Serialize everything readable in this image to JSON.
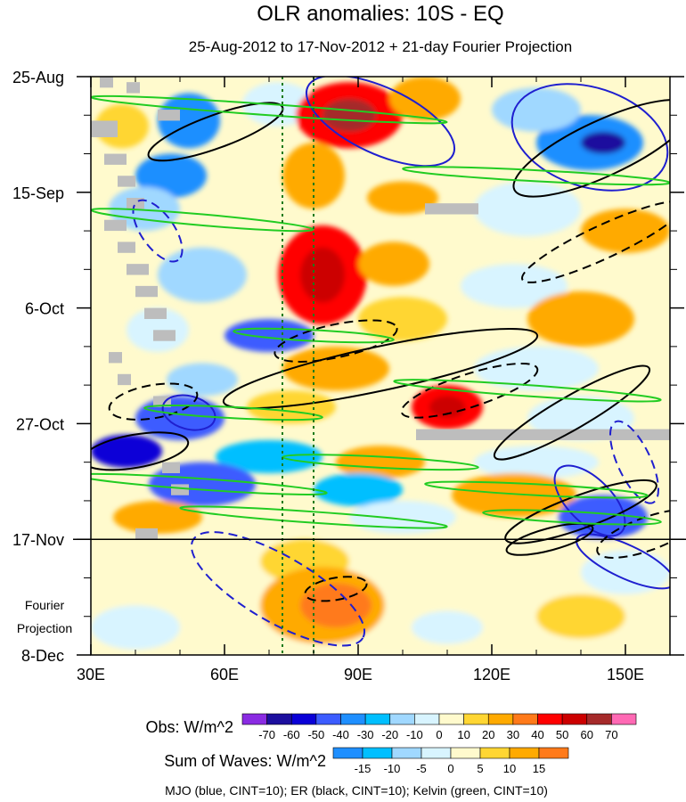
{
  "chart_data": {
    "type": "heatmap",
    "title": "OLR anomalies: 10S - EQ",
    "subtitle": "25-Aug-2012 to 17-Nov-2012 + 21-day Fourier Projection",
    "x_axis": {
      "range": [
        30,
        160
      ],
      "ticks": [
        {
          "value": 30,
          "label": "30E"
        },
        {
          "value": 60,
          "label": "60E"
        },
        {
          "value": 90,
          "label": "90E"
        },
        {
          "value": 120,
          "label": "120E"
        },
        {
          "value": 150,
          "label": "150E"
        }
      ]
    },
    "y_axis": {
      "range_days": [
        0,
        105
      ],
      "ticks": [
        {
          "day": 0,
          "label": "25-Aug"
        },
        {
          "day": 21,
          "label": "15-Sep"
        },
        {
          "day": 42,
          "label": "6-Oct"
        },
        {
          "day": 63,
          "label": "27-Oct"
        },
        {
          "day": 84,
          "label": "17-Nov"
        },
        {
          "day": 105,
          "label": "8-Dec"
        }
      ],
      "projection_label": [
        "Fourier",
        "Projection"
      ]
    },
    "observation_end_day": 84,
    "reference_longitudes": [
      73,
      80
    ],
    "obs_colorbar": {
      "label": "Obs: W/m^2",
      "levels": [
        "-70",
        "-60",
        "-50",
        "-40",
        "-30",
        "-20",
        "-10",
        "0",
        "10",
        "20",
        "30",
        "40",
        "50",
        "60",
        "70"
      ],
      "colors": [
        "#8a2be2",
        "#1c0f9e",
        "#0a00d7",
        "#3c5cff",
        "#1f8fff",
        "#00bfff",
        "#a0d8ff",
        "#d8f4ff",
        "#fffacd",
        "#ffd633",
        "#ffaa00",
        "#ff7a1a",
        "#ff0000",
        "#cc0000",
        "#a52a2a",
        "#ff69b4"
      ]
    },
    "wave_colorbar": {
      "label": "Sum of Waves: W/m^2",
      "levels": [
        "-15",
        "-10",
        "-5",
        "0",
        "5",
        "10",
        "15"
      ],
      "colors": [
        "#1f8fff",
        "#00bfff",
        "#a0d8ff",
        "#d8f4ff",
        "#fffacd",
        "#ffd633",
        "#ffaa00",
        "#ff7a1a"
      ]
    },
    "footnote": "MJO (blue, CINT=10); ER (black, CINT=10); Kelvin (green, CINT=10)",
    "anomaly_blobs": [
      {
        "lon": 37,
        "day": 9,
        "rx": 6,
        "ry": 4,
        "value": 10
      },
      {
        "lon": 52,
        "day": 8,
        "rx": 7,
        "ry": 5,
        "value": -40
      },
      {
        "lon": 72,
        "day": 5,
        "rx": 8,
        "ry": 4,
        "value": -10
      },
      {
        "lon": 88,
        "day": 7,
        "rx": 12,
        "ry": 6,
        "value": 40
      },
      {
        "lon": 88,
        "day": 7,
        "rx": 6,
        "ry": 3,
        "value": 60
      },
      {
        "lon": 105,
        "day": 4,
        "rx": 8,
        "ry": 4,
        "value": 20
      },
      {
        "lon": 142,
        "day": 12,
        "rx": 12,
        "ry": 5,
        "value": -40
      },
      {
        "lon": 145,
        "day": 12,
        "rx": 5,
        "ry": 2,
        "value": -70
      },
      {
        "lon": 130,
        "day": 6,
        "rx": 10,
        "ry": 4,
        "value": -20
      },
      {
        "lon": 48,
        "day": 18,
        "rx": 8,
        "ry": 4,
        "value": -40
      },
      {
        "lon": 42,
        "day": 24,
        "rx": 8,
        "ry": 4,
        "value": -20
      },
      {
        "lon": 80,
        "day": 18,
        "rx": 7,
        "ry": 6,
        "value": 20
      },
      {
        "lon": 100,
        "day": 22,
        "rx": 8,
        "ry": 3,
        "value": 20
      },
      {
        "lon": 128,
        "day": 24,
        "rx": 12,
        "ry": 5,
        "value": -10
      },
      {
        "lon": 150,
        "day": 28,
        "rx": 10,
        "ry": 4,
        "value": 20
      },
      {
        "lon": 82,
        "day": 36,
        "rx": 10,
        "ry": 9,
        "value": 40
      },
      {
        "lon": 82,
        "day": 36,
        "rx": 5,
        "ry": 5,
        "value": 50
      },
      {
        "lon": 98,
        "day": 34,
        "rx": 8,
        "ry": 4,
        "value": 20
      },
      {
        "lon": 55,
        "day": 36,
        "rx": 10,
        "ry": 5,
        "value": -20
      },
      {
        "lon": 125,
        "day": 38,
        "rx": 12,
        "ry": 4,
        "value": -10
      },
      {
        "lon": 70,
        "day": 47,
        "rx": 10,
        "ry": 3,
        "value": -50
      },
      {
        "lon": 45,
        "day": 46,
        "rx": 7,
        "ry": 4,
        "value": -10
      },
      {
        "lon": 100,
        "day": 44,
        "rx": 10,
        "ry": 4,
        "value": 10
      },
      {
        "lon": 140,
        "day": 44,
        "rx": 12,
        "ry": 5,
        "value": 20
      },
      {
        "lon": 85,
        "day": 53,
        "rx": 12,
        "ry": 4,
        "value": 20
      },
      {
        "lon": 55,
        "day": 55,
        "rx": 8,
        "ry": 3,
        "value": -20
      },
      {
        "lon": 130,
        "day": 53,
        "rx": 14,
        "ry": 4,
        "value": -10
      },
      {
        "lon": 110,
        "day": 60,
        "rx": 8,
        "ry": 4,
        "value": 40
      },
      {
        "lon": 110,
        "day": 60,
        "rx": 4,
        "ry": 2,
        "value": 50
      },
      {
        "lon": 50,
        "day": 62,
        "rx": 10,
        "ry": 4,
        "value": -50
      },
      {
        "lon": 75,
        "day": 60,
        "rx": 10,
        "ry": 3,
        "value": 10
      },
      {
        "lon": 140,
        "day": 62,
        "rx": 12,
        "ry": 4,
        "value": -10
      },
      {
        "lon": 38,
        "day": 68,
        "rx": 8,
        "ry": 3,
        "value": -60
      },
      {
        "lon": 70,
        "day": 69,
        "rx": 12,
        "ry": 3,
        "value": -30
      },
      {
        "lon": 95,
        "day": 70,
        "rx": 10,
        "ry": 3,
        "value": 20
      },
      {
        "lon": 130,
        "day": 70,
        "rx": 14,
        "ry": 3,
        "value": -10
      },
      {
        "lon": 55,
        "day": 74,
        "rx": 12,
        "ry": 4,
        "value": -50
      },
      {
        "lon": 90,
        "day": 75,
        "rx": 10,
        "ry": 3,
        "value": -30
      },
      {
        "lon": 125,
        "day": 76,
        "rx": 14,
        "ry": 4,
        "value": 20
      },
      {
        "lon": 45,
        "day": 80,
        "rx": 10,
        "ry": 3,
        "value": 20
      },
      {
        "lon": 100,
        "day": 80,
        "rx": 12,
        "ry": 3,
        "value": -10
      },
      {
        "lon": 145,
        "day": 80,
        "rx": 10,
        "ry": 4,
        "value": -50
      }
    ],
    "projection_blobs": [
      {
        "lon": 78,
        "day": 88,
        "rx": 10,
        "ry": 4,
        "value": 5
      },
      {
        "lon": 82,
        "day": 96,
        "rx": 14,
        "ry": 7,
        "value": 10
      },
      {
        "lon": 85,
        "day": 96,
        "rx": 8,
        "ry": 4,
        "value": 15
      },
      {
        "lon": 140,
        "day": 98,
        "rx": 10,
        "ry": 4,
        "value": 5
      },
      {
        "lon": 150,
        "day": 90,
        "rx": 10,
        "ry": 4,
        "value": -5
      },
      {
        "lon": 40,
        "day": 100,
        "rx": 10,
        "ry": 4,
        "value": -5
      },
      {
        "lon": 110,
        "day": 100,
        "rx": 8,
        "ry": 3,
        "value": -5
      }
    ],
    "missing_data_bands": [
      {
        "lon1": 32,
        "lon2": 35,
        "day1": 0,
        "day2": 2
      },
      {
        "lon1": 38,
        "lon2": 41,
        "day1": 1,
        "day2": 3
      },
      {
        "lon1": 45,
        "lon2": 50,
        "day1": 6,
        "day2": 8
      },
      {
        "lon1": 30,
        "lon2": 36,
        "day1": 8,
        "day2": 11
      },
      {
        "lon1": 33,
        "lon2": 38,
        "day1": 14,
        "day2": 16
      },
      {
        "lon1": 36,
        "lon2": 40,
        "day1": 18,
        "day2": 20
      },
      {
        "lon1": 38,
        "lon2": 42,
        "day1": 22,
        "day2": 24
      },
      {
        "lon1": 33,
        "lon2": 38,
        "day1": 26,
        "day2": 28
      },
      {
        "lon1": 36,
        "lon2": 40,
        "day1": 30,
        "day2": 32
      },
      {
        "lon1": 38,
        "lon2": 43,
        "day1": 34,
        "day2": 36
      },
      {
        "lon1": 40,
        "lon2": 45,
        "day1": 38,
        "day2": 40
      },
      {
        "lon1": 42,
        "lon2": 47,
        "day1": 42,
        "day2": 44
      },
      {
        "lon1": 44,
        "lon2": 49,
        "day1": 46,
        "day2": 48
      },
      {
        "lon1": 34,
        "lon2": 37,
        "day1": 50,
        "day2": 52
      },
      {
        "lon1": 36,
        "lon2": 39,
        "day1": 54,
        "day2": 56
      },
      {
        "lon1": 44,
        "lon2": 48,
        "day1": 58,
        "day2": 60
      },
      {
        "lon1": 46,
        "lon2": 50,
        "day1": 70,
        "day2": 72
      },
      {
        "lon1": 48,
        "lon2": 52,
        "day1": 74,
        "day2": 76
      },
      {
        "lon1": 40,
        "lon2": 45,
        "day1": 82,
        "day2": 84
      },
      {
        "lon1": 105,
        "lon2": 117,
        "day1": 23,
        "day2": 25
      },
      {
        "lon1": 103,
        "lon2": 160,
        "day1": 64,
        "day2": 66
      }
    ],
    "contours": [
      {
        "wave": "MJO",
        "sign": "positive",
        "lon": 95,
        "day": 8,
        "rx": 18,
        "ry": 6,
        "angle": 25
      },
      {
        "wave": "MJO",
        "sign": "positive",
        "lon": 142,
        "day": 11,
        "rx": 18,
        "ry": 9,
        "angle": 18
      },
      {
        "wave": "MJO",
        "sign": "negative",
        "lon": 45,
        "day": 28,
        "rx": 8,
        "ry": 3,
        "angle": 55
      },
      {
        "wave": "MJO",
        "sign": "positive",
        "lon": 52,
        "day": 61,
        "rx": 6,
        "ry": 3,
        "angle": 15
      },
      {
        "wave": "MJO",
        "sign": "negative",
        "lon": 152,
        "day": 70,
        "rx": 10,
        "ry": 3,
        "angle": 65
      },
      {
        "wave": "MJO",
        "sign": "positive",
        "lon": 142,
        "day": 77,
        "rx": 10,
        "ry": 4,
        "angle": 45
      },
      {
        "wave": "MJO",
        "sign": "positive",
        "lon": 150,
        "day": 88,
        "rx": 12,
        "ry": 3,
        "angle": 25
      },
      {
        "wave": "MJO",
        "sign": "negative",
        "lon": 72,
        "day": 93,
        "rx": 22,
        "ry": 6,
        "angle": 30
      },
      {
        "wave": "ER",
        "sign": "positive",
        "lon": 58,
        "day": 10,
        "rx": 16,
        "ry": 3,
        "angle": -20
      },
      {
        "wave": "ER",
        "sign": "positive",
        "lon": 145,
        "day": 13,
        "rx": 22,
        "ry": 5,
        "angle": -25
      },
      {
        "wave": "ER",
        "sign": "negative",
        "lon": 145,
        "day": 30,
        "rx": 20,
        "ry": 3,
        "angle": -25
      },
      {
        "wave": "ER",
        "sign": "negative",
        "lon": 85,
        "day": 48,
        "rx": 14,
        "ry": 3,
        "angle": -12
      },
      {
        "wave": "ER",
        "sign": "positive",
        "lon": 95,
        "day": 53,
        "rx": 36,
        "ry": 4,
        "angle": -12
      },
      {
        "wave": "ER",
        "sign": "negative",
        "lon": 115,
        "day": 57,
        "rx": 16,
        "ry": 3,
        "angle": -18
      },
      {
        "wave": "ER",
        "sign": "positive",
        "lon": 138,
        "day": 61,
        "rx": 20,
        "ry": 3,
        "angle": -30
      },
      {
        "wave": "ER",
        "sign": "negative",
        "lon": 44,
        "day": 59,
        "rx": 10,
        "ry": 3,
        "angle": -10
      },
      {
        "wave": "ER",
        "sign": "positive",
        "lon": 40,
        "day": 68,
        "rx": 12,
        "ry": 3,
        "angle": -10
      },
      {
        "wave": "ER",
        "sign": "positive",
        "lon": 140,
        "day": 79,
        "rx": 18,
        "ry": 3,
        "angle": -20
      },
      {
        "wave": "ER",
        "sign": "negative",
        "lon": 155,
        "day": 83,
        "rx": 12,
        "ry": 3,
        "angle": -20
      },
      {
        "wave": "ER",
        "sign": "positive",
        "lon": 133,
        "day": 84,
        "rx": 10,
        "ry": 2,
        "angle": -15
      },
      {
        "wave": "ER",
        "sign": "negative",
        "lon": 85,
        "day": 93,
        "rx": 7,
        "ry": 2,
        "angle": -10
      },
      {
        "wave": "Kelvin",
        "sign": "positive",
        "lon": 70,
        "day": 6,
        "rx": 40,
        "ry": 1,
        "angle": 4
      },
      {
        "wave": "Kelvin",
        "sign": "positive",
        "lon": 130,
        "day": 18,
        "rx": 30,
        "ry": 1,
        "angle": 3
      },
      {
        "wave": "Kelvin",
        "sign": "positive",
        "lon": 55,
        "day": 26,
        "rx": 25,
        "ry": 1,
        "angle": 5
      },
      {
        "wave": "Kelvin",
        "sign": "positive",
        "lon": 80,
        "day": 47,
        "rx": 18,
        "ry": 1,
        "angle": 3
      },
      {
        "wave": "Kelvin",
        "sign": "positive",
        "lon": 128,
        "day": 57,
        "rx": 30,
        "ry": 1,
        "angle": 4
      },
      {
        "wave": "Kelvin",
        "sign": "positive",
        "lon": 62,
        "day": 61,
        "rx": 20,
        "ry": 1,
        "angle": 3
      },
      {
        "wave": "Kelvin",
        "sign": "positive",
        "lon": 95,
        "day": 70,
        "rx": 22,
        "ry": 1,
        "angle": 3
      },
      {
        "wave": "Kelvin",
        "sign": "positive",
        "lon": 55,
        "day": 74,
        "rx": 28,
        "ry": 1,
        "angle": 4
      },
      {
        "wave": "Kelvin",
        "sign": "positive",
        "lon": 130,
        "day": 75,
        "rx": 25,
        "ry": 1,
        "angle": 3
      },
      {
        "wave": "Kelvin",
        "sign": "positive",
        "lon": 80,
        "day": 80,
        "rx": 30,
        "ry": 1,
        "angle": 4
      },
      {
        "wave": "Kelvin",
        "sign": "positive",
        "lon": 138,
        "day": 80,
        "rx": 20,
        "ry": 1,
        "angle": 3
      }
    ]
  }
}
